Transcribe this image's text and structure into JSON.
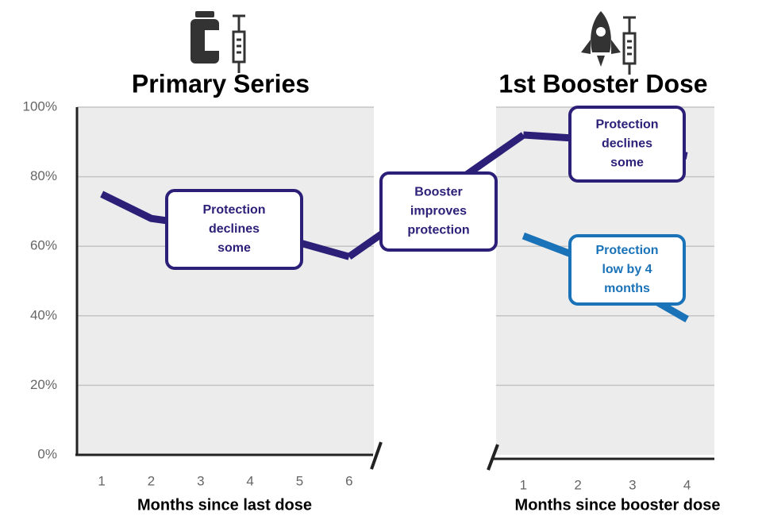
{
  "chart_data": [
    {
      "type": "line",
      "title": "Primary Series",
      "xlabel": "Months since last dose",
      "x": [
        1,
        2,
        3,
        4,
        5,
        6
      ],
      "xlim": [
        0.5,
        6.5
      ],
      "xticks": [
        1,
        2,
        3,
        4,
        5,
        6
      ],
      "ylim": [
        0,
        100
      ],
      "yticks": [
        {
          "value": 0,
          "label": "0%"
        },
        {
          "value": 20,
          "label": "20%"
        },
        {
          "value": 40,
          "label": "40%"
        },
        {
          "value": 60,
          "label": "60%"
        },
        {
          "value": 80,
          "label": "80%"
        },
        {
          "value": 100,
          "label": "100%"
        }
      ],
      "grid": true,
      "series": [
        {
          "color": "#2b1f78",
          "values": [
            75,
            68,
            66,
            63,
            61,
            57
          ]
        }
      ],
      "annotations": [
        {
          "lines": [
            "Protection",
            "declines",
            "some"
          ],
          "color": "#2b1f78"
        }
      ]
    },
    {
      "type": "line",
      "title": "1st Booster Dose",
      "xlabel": "Months since booster dose",
      "x": [
        1,
        2,
        3,
        4
      ],
      "xlim": [
        0.5,
        4.5
      ],
      "xticks": [
        1,
        2,
        3,
        4
      ],
      "ylim": [
        0,
        100
      ],
      "grid": true,
      "series": [
        {
          "color": "#2b1f78",
          "values": [
            92,
            91,
            89,
            86
          ]
        },
        {
          "color": "#1a73b8",
          "values": [
            63,
            57,
            48,
            39
          ]
        }
      ],
      "annotations": [
        {
          "lines": [
            "Booster",
            "improves",
            "protection"
          ],
          "color": "#2b1f78"
        },
        {
          "lines": [
            "Protection",
            "declines",
            "some"
          ],
          "color": "#2b1f78"
        },
        {
          "lines": [
            "Protection",
            "low by 4",
            "months"
          ],
          "color": "#1a73b8"
        }
      ]
    }
  ]
}
